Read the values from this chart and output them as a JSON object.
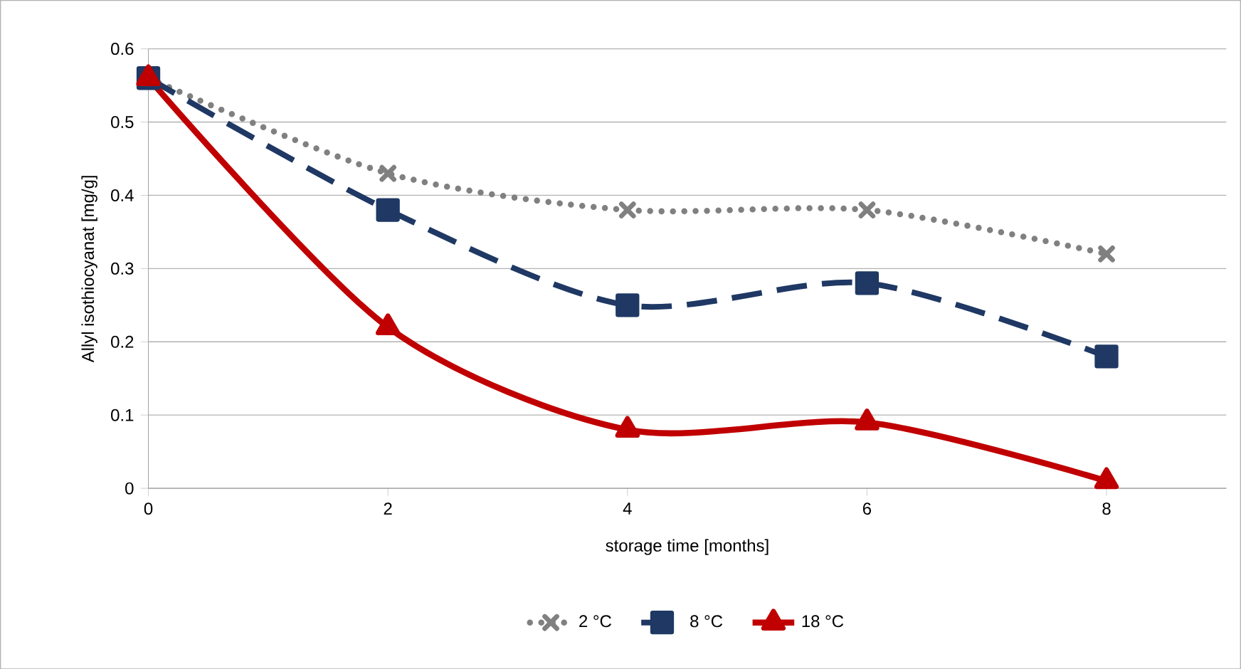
{
  "chart_data": {
    "type": "line",
    "xlabel": "storage time [months]",
    "ylabel": "Allyl isothiocyanat [mg/g]",
    "x": [
      0,
      2,
      4,
      6,
      8
    ],
    "series": [
      {
        "name": "2 °C",
        "color": "#808080",
        "values": [
          0.56,
          0.43,
          0.38,
          0.38,
          0.32
        ],
        "marker": "cross",
        "line_style": "dotted"
      },
      {
        "name": "8 °C",
        "color": "#1f3864",
        "values": [
          0.56,
          0.38,
          0.25,
          0.28,
          0.18
        ],
        "marker": "square",
        "line_style": "dashed"
      },
      {
        "name": "18 °C",
        "color": "#c00000",
        "values": [
          0.56,
          0.22,
          0.08,
          0.09,
          0.01
        ],
        "marker": "triangle",
        "line_style": "solid"
      }
    ],
    "xlim": [
      0,
      9
    ],
    "ylim": [
      0,
      0.6
    ],
    "xticks": [
      0,
      2,
      4,
      6,
      8
    ],
    "yticks": [
      0,
      0.1,
      0.2,
      0.3,
      0.4,
      0.5,
      0.6
    ],
    "grid": "y",
    "legend": "bottom"
  }
}
